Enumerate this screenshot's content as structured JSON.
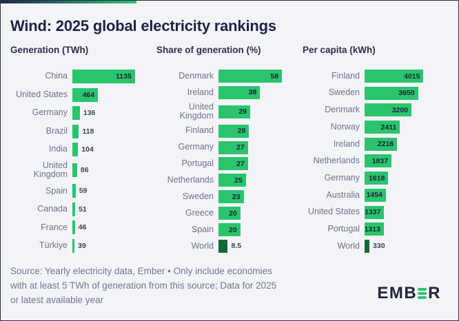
{
  "title": "Wind: 2025 global electricity rankings",
  "colors": {
    "bar_green": "#2bc46d",
    "world_dark_green": "#15673a",
    "navy": "#1d2346",
    "background": "#f3f4f8",
    "gradient_left": "#20264a",
    "gradient_right": "#2bc46d"
  },
  "footer": {
    "lines": [
      "Source: Yearly electricity data, Ember • Only include economies",
      "with at least 5 TWh of generation from this source; Data for 2025",
      "or latest available year"
    ]
  },
  "logo": {
    "left": "EMB",
    "right": "R",
    "middle_icon": "three-green-bars-e"
  },
  "chart_data": [
    {
      "type": "bar",
      "orientation": "horizontal",
      "title": "Generation (TWh)",
      "xlim": [
        0,
        1250
      ],
      "grid": false,
      "items": [
        {
          "name": "China",
          "value": 1135,
          "label": "1135",
          "label_inside": true,
          "world": false
        },
        {
          "name": "United States",
          "value": 464,
          "label": "464",
          "label_inside": true,
          "world": false
        },
        {
          "name": "Germany",
          "value": 136,
          "label": "136",
          "label_inside": false,
          "world": false
        },
        {
          "name": "Brazil",
          "value": 118,
          "label": "118",
          "label_inside": false,
          "world": false
        },
        {
          "name": "India",
          "value": 104,
          "label": "104",
          "label_inside": false,
          "world": false
        },
        {
          "name": "United Kingdom",
          "value": 86,
          "label": "86",
          "label_inside": false,
          "world": false
        },
        {
          "name": "Spain",
          "value": 59,
          "label": "59",
          "label_inside": false,
          "world": false
        },
        {
          "name": "Canada",
          "value": 51,
          "label": "51",
          "label_inside": false,
          "world": false
        },
        {
          "name": "France",
          "value": 46,
          "label": "46",
          "label_inside": false,
          "world": false
        },
        {
          "name": "Türkiye",
          "value": 39,
          "label": "39",
          "label_inside": false,
          "world": false
        }
      ]
    },
    {
      "type": "bar",
      "orientation": "horizontal",
      "title": "Share of generation (%)",
      "xlim": [
        0,
        63
      ],
      "grid": false,
      "items": [
        {
          "name": "Denmark",
          "value": 58,
          "label": "58",
          "label_inside": true,
          "world": false
        },
        {
          "name": "Ireland",
          "value": 38,
          "label": "38",
          "label_inside": true,
          "world": false
        },
        {
          "name": "United Kingdom",
          "value": 29,
          "label": "29",
          "label_inside": true,
          "world": false
        },
        {
          "name": "Finland",
          "value": 28,
          "label": "28",
          "label_inside": true,
          "world": false
        },
        {
          "name": "Germany",
          "value": 27,
          "label": "27",
          "label_inside": true,
          "world": false
        },
        {
          "name": "Portugal",
          "value": 27,
          "label": "27",
          "label_inside": true,
          "world": false
        },
        {
          "name": "Netherlands",
          "value": 25,
          "label": "25",
          "label_inside": true,
          "world": false
        },
        {
          "name": "Sweden",
          "value": 23,
          "label": "23",
          "label_inside": true,
          "world": false
        },
        {
          "name": "Greece",
          "value": 20,
          "label": "20",
          "label_inside": true,
          "world": false
        },
        {
          "name": "Spain",
          "value": 20,
          "label": "20",
          "label_inside": true,
          "world": false
        },
        {
          "name": "World",
          "value": 8.5,
          "label": "8.5",
          "label_inside": false,
          "world": true
        }
      ]
    },
    {
      "type": "bar",
      "orientation": "horizontal",
      "title": "Per capita (kWh)",
      "xlim": [
        0,
        4700
      ],
      "grid": false,
      "items": [
        {
          "name": "Finland",
          "value": 4015,
          "label": "4015",
          "label_inside": true,
          "world": false
        },
        {
          "name": "Sweden",
          "value": 3650,
          "label": "3650",
          "label_inside": true,
          "world": false
        },
        {
          "name": "Denmark",
          "value": 3200,
          "label": "3200",
          "label_inside": true,
          "world": false
        },
        {
          "name": "Norway",
          "value": 2411,
          "label": "2411",
          "label_inside": true,
          "world": false
        },
        {
          "name": "Ireland",
          "value": 2216,
          "label": "2216",
          "label_inside": true,
          "world": false
        },
        {
          "name": "Netherlands",
          "value": 1837,
          "label": "1837",
          "label_inside": true,
          "world": false
        },
        {
          "name": "Germany",
          "value": 1618,
          "label": "1618",
          "label_inside": true,
          "world": false
        },
        {
          "name": "Australia",
          "value": 1454,
          "label": "1454",
          "label_inside": true,
          "world": false
        },
        {
          "name": "United States",
          "value": 1337,
          "label": "1337",
          "label_inside": true,
          "world": false
        },
        {
          "name": "Portugal",
          "value": 1313,
          "label": "1313",
          "label_inside": true,
          "world": false
        },
        {
          "name": "World",
          "value": 330,
          "label": "330",
          "label_inside": false,
          "world": true
        }
      ]
    }
  ]
}
